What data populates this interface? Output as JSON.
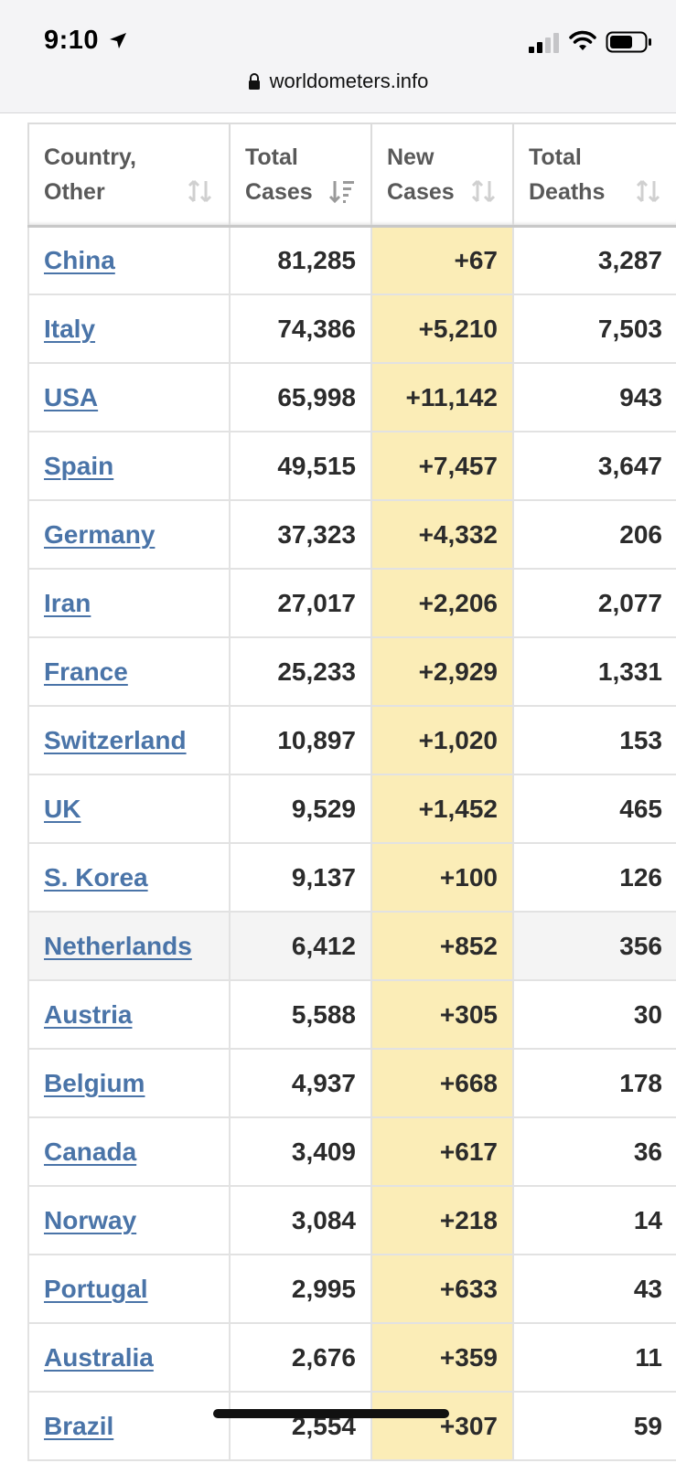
{
  "status_bar": {
    "time": "9:10",
    "url": "worldometers.info"
  },
  "table": {
    "headers": {
      "country_line1": "Country,",
      "country_line2": "Other",
      "total_cases_line1": "Total",
      "total_cases_line2": "Cases",
      "new_cases_line1": "New",
      "new_cases_line2": "Cases",
      "total_deaths_line1": "Total",
      "total_deaths_line2": "Deaths"
    },
    "rows": [
      {
        "country": "China",
        "total_cases": "81,285",
        "new_cases": "+67",
        "total_deaths": "3,287"
      },
      {
        "country": "Italy",
        "total_cases": "74,386",
        "new_cases": "+5,210",
        "total_deaths": "7,503"
      },
      {
        "country": "USA",
        "total_cases": "65,998",
        "new_cases": "+11,142",
        "total_deaths": "943"
      },
      {
        "country": "Spain",
        "total_cases": "49,515",
        "new_cases": "+7,457",
        "total_deaths": "3,647"
      },
      {
        "country": "Germany",
        "total_cases": "37,323",
        "new_cases": "+4,332",
        "total_deaths": "206"
      },
      {
        "country": "Iran",
        "total_cases": "27,017",
        "new_cases": "+2,206",
        "total_deaths": "2,077"
      },
      {
        "country": "France",
        "total_cases": "25,233",
        "new_cases": "+2,929",
        "total_deaths": "1,331"
      },
      {
        "country": "Switzerland",
        "total_cases": "10,897",
        "new_cases": "+1,020",
        "total_deaths": "153"
      },
      {
        "country": "UK",
        "total_cases": "9,529",
        "new_cases": "+1,452",
        "total_deaths": "465"
      },
      {
        "country": "S. Korea",
        "total_cases": "9,137",
        "new_cases": "+100",
        "total_deaths": "126"
      },
      {
        "country": "Netherlands",
        "total_cases": "6,412",
        "new_cases": "+852",
        "total_deaths": "356"
      },
      {
        "country": "Austria",
        "total_cases": "5,588",
        "new_cases": "+305",
        "total_deaths": "30"
      },
      {
        "country": "Belgium",
        "total_cases": "4,937",
        "new_cases": "+668",
        "total_deaths": "178"
      },
      {
        "country": "Canada",
        "total_cases": "3,409",
        "new_cases": "+617",
        "total_deaths": "36"
      },
      {
        "country": "Norway",
        "total_cases": "3,084",
        "new_cases": "+218",
        "total_deaths": "14"
      },
      {
        "country": "Portugal",
        "total_cases": "2,995",
        "new_cases": "+633",
        "total_deaths": "43"
      },
      {
        "country": "Australia",
        "total_cases": "2,676",
        "new_cases": "+359",
        "total_deaths": "11"
      },
      {
        "country": "Brazil",
        "total_cases": "2,554",
        "new_cases": "+307",
        "total_deaths": "59"
      }
    ]
  },
  "colors": {
    "link": "#4a74a8",
    "new_cases_bg": "#fbedb7",
    "highlight_row": "#f4f4f4"
  }
}
